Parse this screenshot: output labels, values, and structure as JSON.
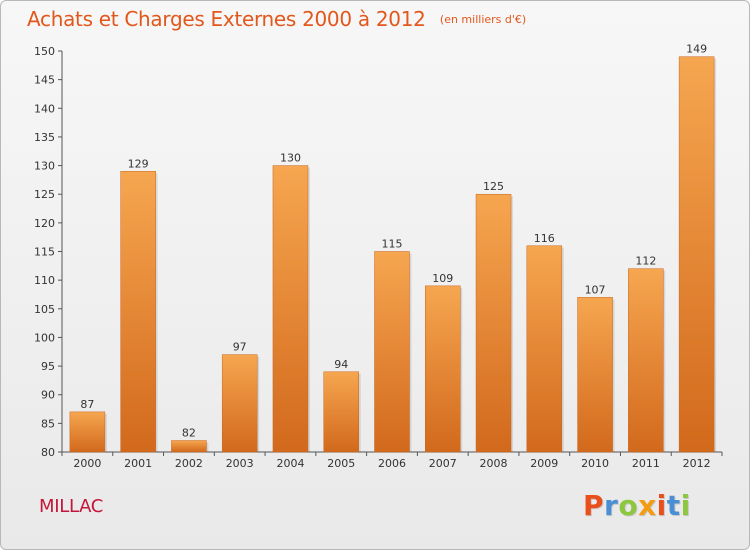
{
  "title": "Achats et Charges Externes 2000 à 2012",
  "subtitle": "(en milliers d'€)",
  "commune": "MILLAC",
  "brand": "Proxiti",
  "colors": {
    "title": "#e2571b",
    "commune": "#c4163a",
    "bar_top": "#f6a650",
    "bar_bottom": "#d2691c",
    "axis": "#555555",
    "logo_letters": [
      "#e94e1b",
      "#4a8fd4",
      "#8dc63f",
      "#f39c12",
      "#e94e1b",
      "#4a8fd4",
      "#8dc63f"
    ]
  },
  "chart_data": {
    "type": "bar",
    "categories": [
      "2000",
      "2001",
      "2002",
      "2003",
      "2004",
      "2005",
      "2006",
      "2007",
      "2008",
      "2009",
      "2010",
      "2011",
      "2012"
    ],
    "values": [
      87,
      129,
      82,
      97,
      130,
      94,
      115,
      109,
      125,
      116,
      107,
      112,
      149
    ],
    "ylim": [
      80,
      150
    ],
    "yticks": [
      80,
      85,
      90,
      95,
      100,
      105,
      110,
      115,
      120,
      125,
      130,
      135,
      140,
      145,
      150
    ],
    "grid": false,
    "legend": "none"
  }
}
